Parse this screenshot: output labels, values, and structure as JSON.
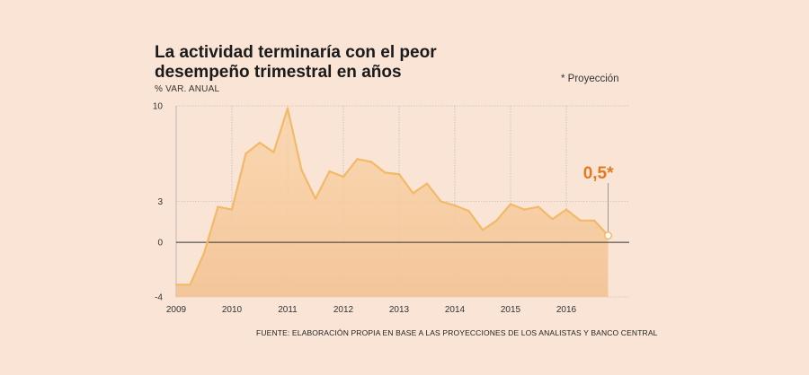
{
  "title_line1": "La actividad terminaría con el peor",
  "title_line2": "desempeño trimestral en años",
  "subtitle": "% VAR. ANUAL",
  "note": "* Proyección",
  "source": "FUENTE: ELABORACIÓN PROPIA EN BASE A LAS PROYECCIONES DE LOS ANALISTAS Y  BANCO CENTRAL",
  "colors": {
    "line": "#f2b967",
    "area_top": "#f9cf9b",
    "area_bottom": "#f4c59a",
    "callout": "#e07b1f",
    "grid": "#b0b0b0",
    "zero_line": "#333333"
  },
  "chart_data": {
    "type": "area",
    "title": "La actividad terminaría con el peor desempeño trimestral en años",
    "ylabel": "% VAR. ANUAL",
    "ylim": [
      -4,
      10
    ],
    "yticks": [
      {
        "value": 10,
        "label": "10"
      },
      {
        "value": 3,
        "label": "3"
      },
      {
        "value": 0,
        "label": "0"
      },
      {
        "value": -4,
        "label": "-4"
      }
    ],
    "xlim": [
      2009,
      2016.9
    ],
    "xticks": [
      {
        "value": 2009,
        "label": "2009"
      },
      {
        "value": 2010,
        "label": "2010"
      },
      {
        "value": 2011,
        "label": "2011"
      },
      {
        "value": 2012,
        "label": "2012"
      },
      {
        "value": 2013,
        "label": "2013"
      },
      {
        "value": 2014,
        "label": "2014"
      },
      {
        "value": 2015,
        "label": "2015"
      },
      {
        "value": 2016,
        "label": "2016"
      }
    ],
    "series": [
      {
        "name": "Actividad",
        "x": [
          2009.0,
          2009.25,
          2009.5,
          2009.75,
          2010.0,
          2010.25,
          2010.5,
          2010.75,
          2011.0,
          2011.25,
          2011.5,
          2011.75,
          2012.0,
          2012.25,
          2012.5,
          2012.75,
          2013.0,
          2013.25,
          2013.5,
          2013.75,
          2014.0,
          2014.25,
          2014.5,
          2014.75,
          2015.0,
          2015.25,
          2015.5,
          2015.75,
          2016.0,
          2016.25,
          2016.5,
          2016.75
        ],
        "values": [
          -3.1,
          -3.1,
          -0.8,
          2.6,
          2.4,
          6.5,
          7.3,
          6.6,
          9.8,
          5.3,
          3.2,
          5.2,
          4.8,
          6.1,
          5.9,
          5.1,
          5.0,
          3.6,
          4.3,
          3.0,
          2.7,
          2.3,
          0.9,
          1.6,
          2.8,
          2.4,
          2.6,
          1.7,
          2.4,
          1.6,
          1.6,
          0.5
        ]
      }
    ],
    "annotation": {
      "x": 2016.75,
      "y": 0.5,
      "label": "0,5*"
    }
  }
}
